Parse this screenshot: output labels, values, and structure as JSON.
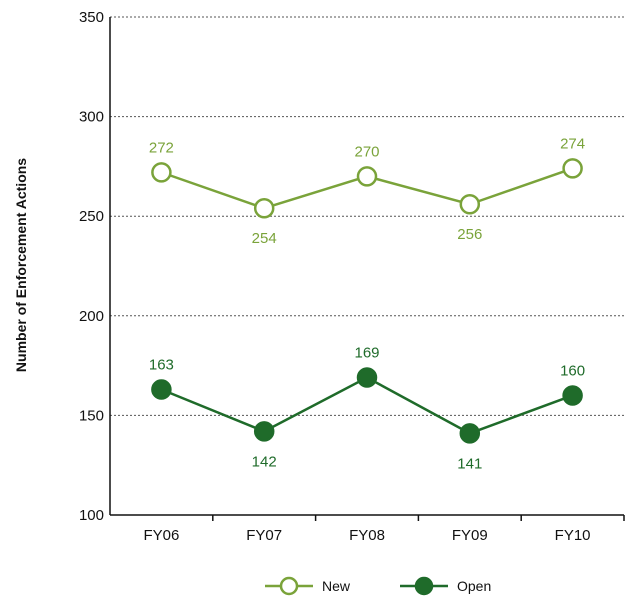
{
  "chart_data": {
    "type": "line",
    "title": "",
    "xlabel": "",
    "ylabel": "Number of Enforcement Actions",
    "categories": [
      "FY06",
      "FY07",
      "FY08",
      "FY09",
      "FY10"
    ],
    "ylim": [
      100,
      350
    ],
    "yticks": [
      100,
      150,
      200,
      250,
      300,
      350
    ],
    "grid": true,
    "legend_position": "bottom-center",
    "series": [
      {
        "name": "New",
        "values": [
          272,
          254,
          270,
          256,
          274
        ],
        "color": "#7aa33a",
        "marker": "hollow-circle"
      },
      {
        "name": "Open",
        "values": [
          163,
          142,
          169,
          141,
          160
        ],
        "color": "#1f6b2a",
        "marker": "filled-circle"
      }
    ]
  }
}
